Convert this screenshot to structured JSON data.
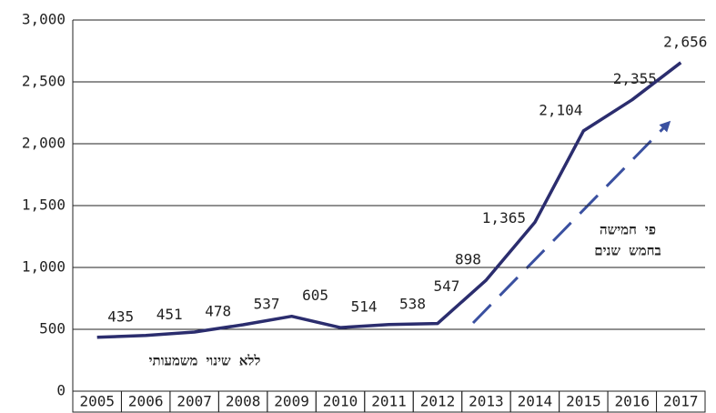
{
  "chart_data": {
    "type": "line",
    "categories": [
      "2005",
      "2006",
      "2007",
      "2008",
      "2009",
      "2010",
      "2011",
      "2012",
      "2013",
      "2014",
      "2015",
      "2016",
      "2017"
    ],
    "values": [
      435,
      451,
      478,
      537,
      605,
      514,
      538,
      547,
      898,
      1365,
      2104,
      2355,
      2656
    ],
    "value_labels": [
      "435",
      "451",
      "478",
      "537",
      "605",
      "514",
      "538",
      "547",
      "898",
      "1,365",
      "2,104",
      "2,355",
      "2,656"
    ],
    "color": "#2b2d6e",
    "ylim": [
      0,
      3000
    ],
    "yticks": [
      0,
      500,
      {
        "value": 1000,
        "label": "1,000"
      },
      {
        "value": 1500,
        "label": "1,500"
      },
      {
        "value": 2000,
        "label": "2,000"
      },
      {
        "value": 2500,
        "label": "2,500"
      },
      {
        "value": 3000,
        "label": "3,000"
      }
    ],
    "grid": true,
    "annotations": [
      "ללא שינוי משמעותי",
      "פי חמישה",
      "בחמש שנים"
    ]
  }
}
